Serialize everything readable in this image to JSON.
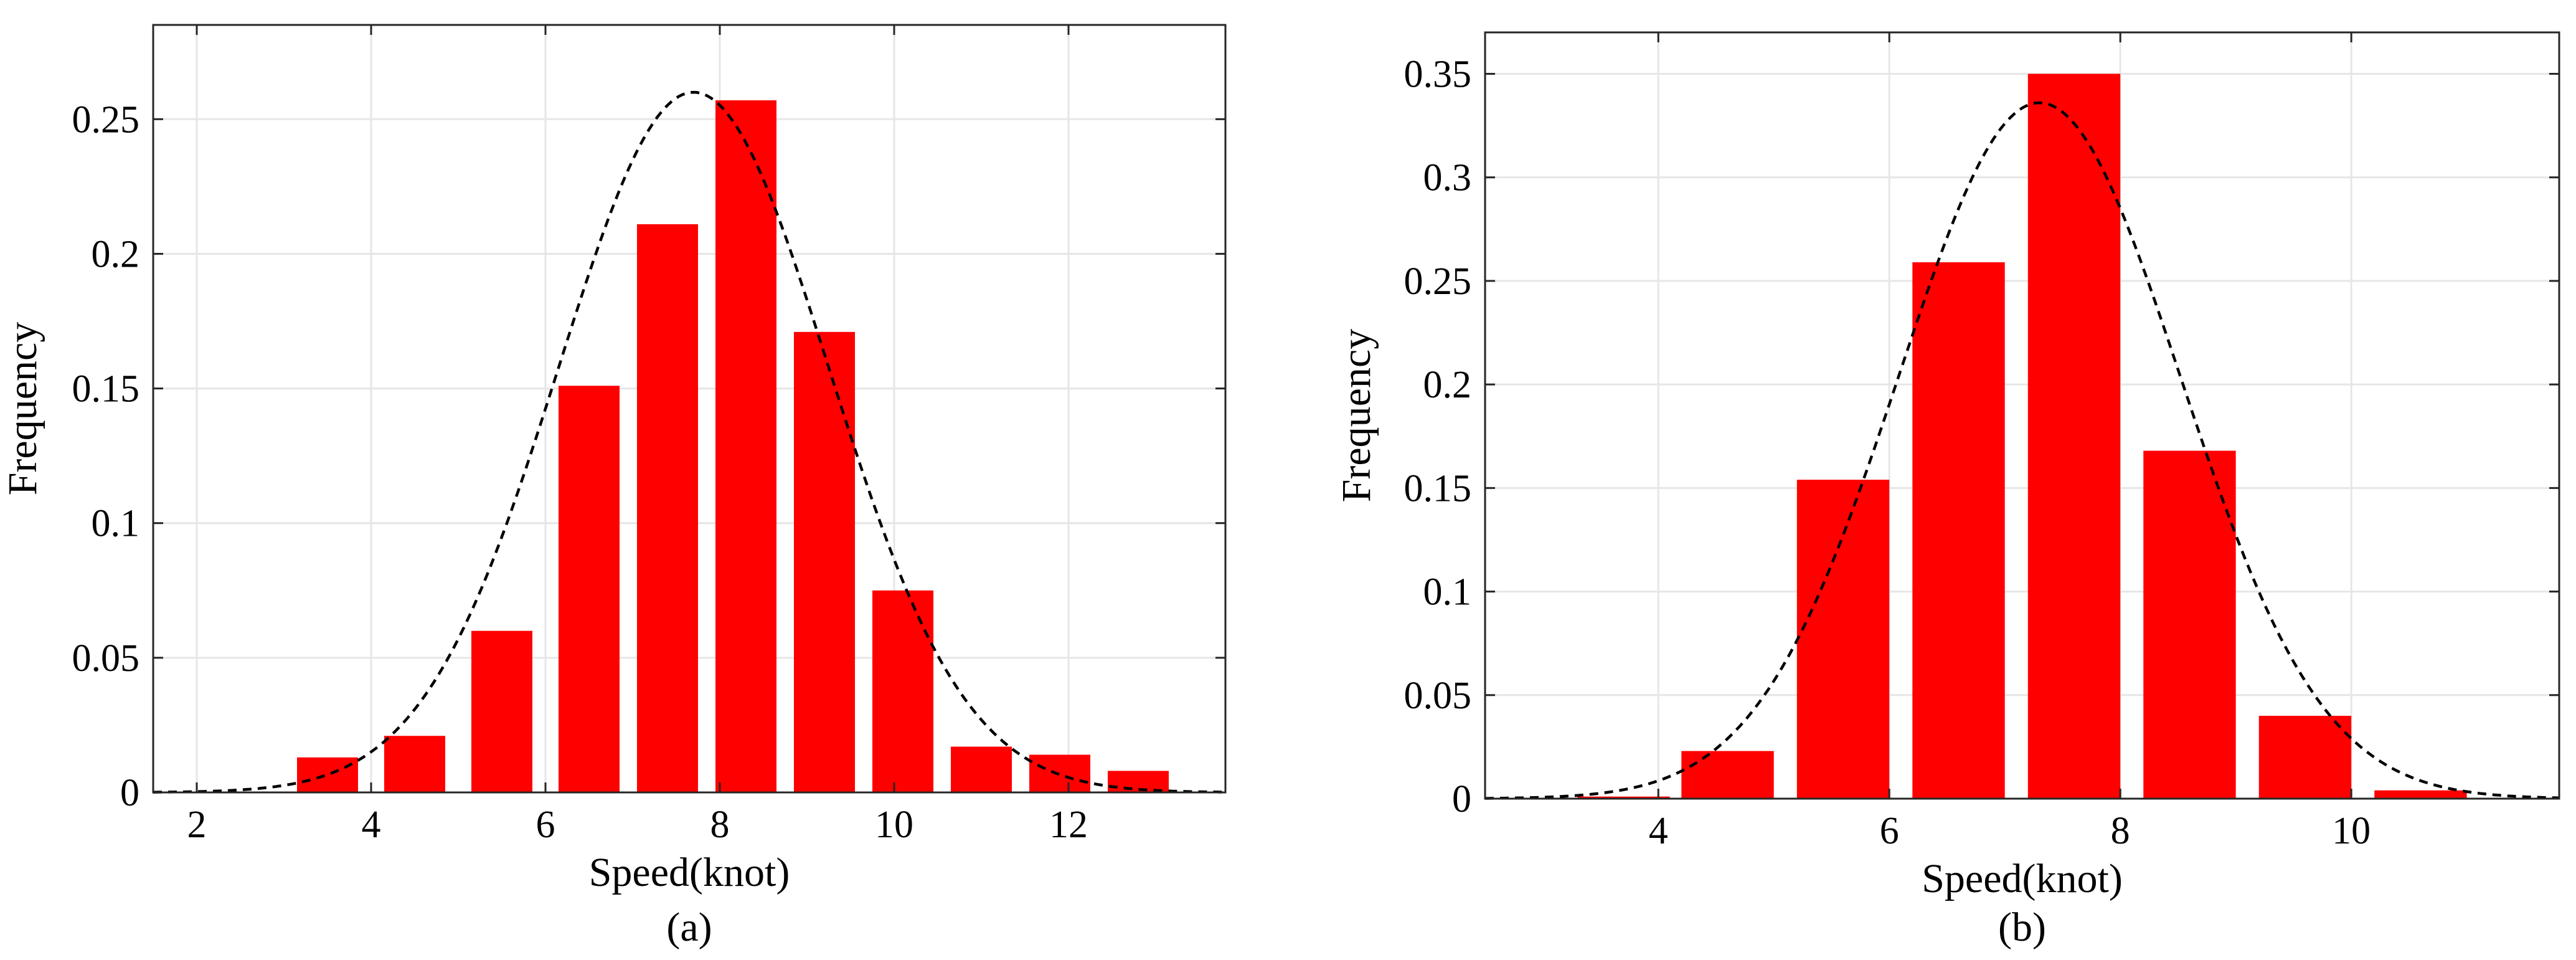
{
  "chart_data": [
    {
      "type": "bar",
      "caption": "(a)",
      "xlabel": "Speed(knot)",
      "ylabel": "Frequency",
      "xlim": [
        1.5,
        13.8
      ],
      "ylim": [
        0,
        0.285
      ],
      "xticks": [
        2,
        4,
        6,
        8,
        10,
        12
      ],
      "yticks": [
        0,
        0.05,
        0.1,
        0.15,
        0.2,
        0.25
      ],
      "xtick_labels": [
        "2",
        "4",
        "6",
        "8",
        "10",
        "12"
      ],
      "ytick_labels": [
        "0",
        "0.05",
        "0.1",
        "0.15",
        "0.2",
        "0.25"
      ],
      "grid": true,
      "bar_color": "#ff0000",
      "bar_width": 0.7,
      "x": [
        3.5,
        4.5,
        5.5,
        6.5,
        7.4,
        8.3,
        9.2,
        10.1,
        11.0,
        11.9,
        12.8
      ],
      "values": [
        0.013,
        0.021,
        0.06,
        0.151,
        0.211,
        0.257,
        0.171,
        0.075,
        0.017,
        0.014,
        0.008
      ],
      "fit": {
        "type": "normal",
        "style": "dashed",
        "color": "#000000",
        "mean": 7.7,
        "std": 1.55,
        "peak": 0.26
      }
    },
    {
      "type": "bar",
      "caption": "(b)",
      "xlabel": "Speed(knot)",
      "ylabel": "Frequency",
      "xlim": [
        2.5,
        11.8
      ],
      "ylim": [
        0,
        0.37
      ],
      "xticks": [
        4,
        6,
        8,
        10
      ],
      "yticks": [
        0,
        0.05,
        0.1,
        0.15,
        0.2,
        0.25,
        0.3,
        0.35
      ],
      "xtick_labels": [
        "4",
        "6",
        "8",
        "10"
      ],
      "ytick_labels": [
        "0",
        "0.05",
        "0.1",
        "0.15",
        "0.2",
        "0.25",
        "0.3",
        "0.35"
      ],
      "grid": true,
      "bar_color": "#ff0000",
      "bar_width": 0.8,
      "x": [
        3.7,
        4.6,
        5.6,
        6.6,
        7.6,
        8.6,
        9.6,
        10.6
      ],
      "values": [
        0.001,
        0.023,
        0.154,
        0.259,
        0.35,
        0.168,
        0.04,
        0.004
      ],
      "fit": {
        "type": "normal",
        "style": "dashed",
        "color": "#000000",
        "mean": 7.3,
        "std": 1.22,
        "peak": 0.336
      }
    }
  ]
}
